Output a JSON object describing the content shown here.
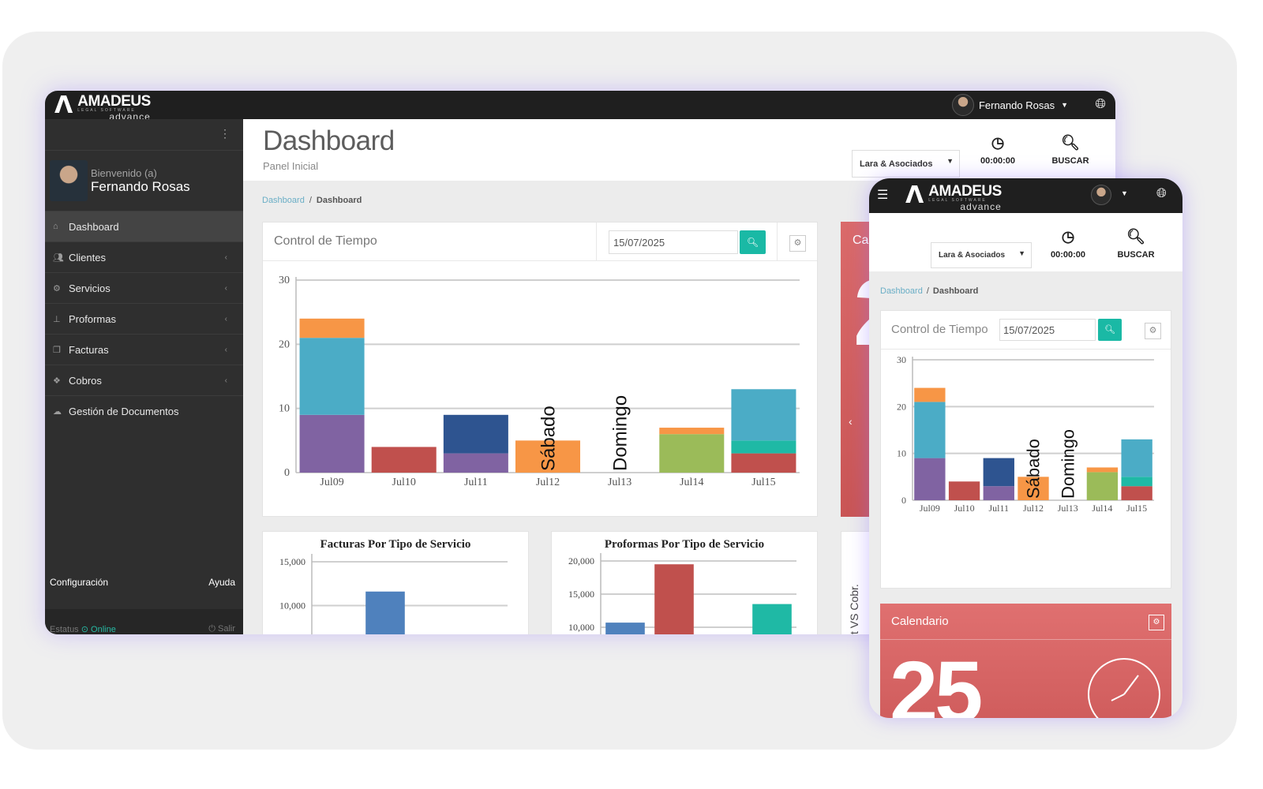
{
  "app": {
    "logo_brand": "AMADEUS",
    "logo_sub": "LEGAL SOFTWARE",
    "logo_variant": "advance",
    "user_name": "Fernando Rosas"
  },
  "sidebar": {
    "welcome": "Bienvenido (a)",
    "user_name": "Fernando Rosas",
    "items": [
      {
        "label": "Dashboard",
        "icon": "home-icon",
        "active": true
      },
      {
        "label": "Clientes",
        "icon": "users-icon"
      },
      {
        "label": "Servicios",
        "icon": "cogs-icon"
      },
      {
        "label": "Proformas",
        "icon": "sitemap-icon"
      },
      {
        "label": "Facturas",
        "icon": "copy-icon"
      },
      {
        "label": "Cobros",
        "icon": "money-icon"
      },
      {
        "label": "Gestión de Documentos",
        "icon": "cloud-icon"
      }
    ],
    "config_label": "Configuración",
    "help_label": "Ayuda",
    "status_label": "Estatus",
    "status_value": "Online",
    "logout_label": "Salir"
  },
  "header": {
    "title": "Dashboard",
    "subtitle": "Panel Inicial",
    "firm_select": "Lara & Asociados",
    "timer": "00:00:00",
    "search_label": "BUSCAR"
  },
  "breadcrumb": {
    "link": "Dashboard",
    "separator": "/",
    "current": "Dashboard"
  },
  "control_tiempo": {
    "title": "Control de Tiempo",
    "date_value": "15/07/2025"
  },
  "calendar": {
    "title_partial": "Ca",
    "title": "Calendario",
    "day_partial": "2",
    "day": "25"
  },
  "facturas_chart": {
    "title": "Facturas Por Tipo de Servicio"
  },
  "proformas_chart": {
    "title": "Proformas Por Tipo de Servicio"
  },
  "vs_panel": {
    "label_partial": "t VS Cobr."
  },
  "colors": {
    "purple": "#8063a2",
    "teal_blue": "#4bacc6",
    "orange": "#f79646",
    "red": "#c0504d",
    "navy": "#2e5490",
    "green": "#9bbb59",
    "teal": "#1fb9a5",
    "blue": "#4f81bd"
  },
  "chart_data": [
    {
      "type": "bar",
      "stacked": true,
      "categories": [
        "Jul09",
        "Jul10",
        "Jul11",
        "Jul12",
        "Jul13",
        "Jul14",
        "Jul15"
      ],
      "ylim": [
        0,
        30
      ],
      "yticks": [
        0,
        10,
        20,
        30
      ],
      "grid": true,
      "annotations": [
        {
          "category": "Jul12",
          "text": "Sábado"
        },
        {
          "category": "Jul13",
          "text": "Domingo"
        }
      ],
      "segments": [
        {
          "category": "Jul09",
          "base": 0,
          "value": 9,
          "color": "#8063a2"
        },
        {
          "category": "Jul09",
          "base": 9,
          "value": 12,
          "color": "#4bacc6"
        },
        {
          "category": "Jul09",
          "base": 21,
          "value": 3,
          "color": "#f79646"
        },
        {
          "category": "Jul10",
          "base": 0,
          "value": 4,
          "color": "#c0504d"
        },
        {
          "category": "Jul11",
          "base": 0,
          "value": 3,
          "color": "#8063a2"
        },
        {
          "category": "Jul11",
          "base": 3,
          "value": 6,
          "color": "#2e5490"
        },
        {
          "category": "Jul12",
          "base": 0,
          "value": 5,
          "color": "#f79646"
        },
        {
          "category": "Jul14",
          "base": 0,
          "value": 6,
          "color": "#9bbb59"
        },
        {
          "category": "Jul14",
          "base": 6,
          "value": 1,
          "color": "#f79646"
        },
        {
          "category": "Jul15",
          "base": 0,
          "value": 3,
          "color": "#c0504d"
        },
        {
          "category": "Jul15",
          "base": 3,
          "value": 2,
          "color": "#1fb9a5"
        },
        {
          "category": "Jul15",
          "base": 5,
          "value": 8,
          "color": "#4bacc6"
        }
      ]
    },
    {
      "type": "bar",
      "title": "Facturas Por Tipo de Servicio",
      "ylim": [
        5000,
        15000
      ],
      "yticks": [
        10000,
        15000
      ],
      "ytick_labels": [
        "10,000",
        "15,000"
      ],
      "grid": true,
      "bars": [
        {
          "index": 1,
          "value": 11600,
          "color": "#4f81bd"
        }
      ]
    },
    {
      "type": "bar",
      "title": "Proformas Por Tipo de Servicio",
      "ylim": [
        10000,
        20000
      ],
      "yticks": [
        10000,
        15000,
        20000
      ],
      "ytick_labels": [
        "10,000",
        "15,000",
        "20,000"
      ],
      "grid": true,
      "bars": [
        {
          "index": 0,
          "value": 10700,
          "color": "#4f81bd"
        },
        {
          "index": 1,
          "value": 19500,
          "color": "#c0504d"
        },
        {
          "index": 3,
          "value": 13500,
          "color": "#1fb9a5"
        }
      ]
    }
  ]
}
